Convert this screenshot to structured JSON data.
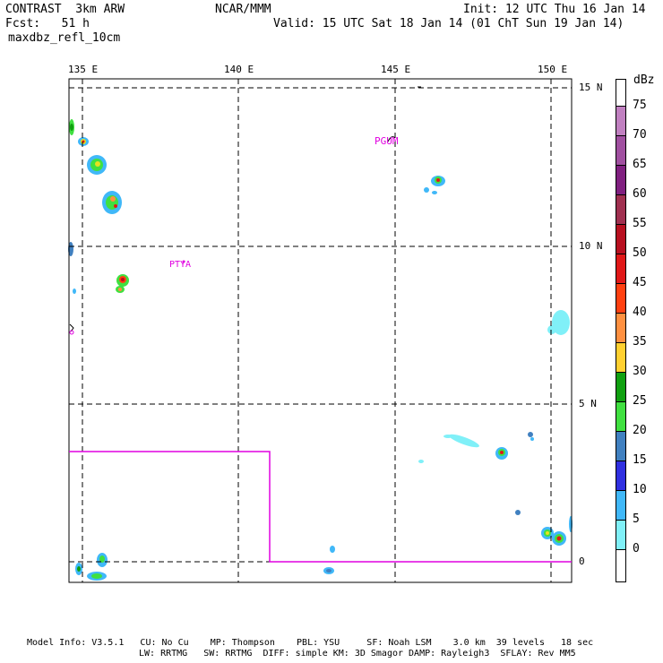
{
  "header": {
    "model": "CONTRAST  3km ARW",
    "org": "NCAR/MMM",
    "init": "Init: 12 UTC Thu 16 Jan 14",
    "fcst": "Fcst:   51 h",
    "valid": "Valid: 15 UTC Sat 18 Jan 14 (01 ChT Sun 19 Jan 14)",
    "field": "maxdbz_refl_10cm"
  },
  "map": {
    "lon_labels": [
      "135 E",
      "140 E",
      "145 E",
      "150 E"
    ],
    "lat_labels": [
      "15 N",
      "10 N",
      "5 N",
      "0"
    ],
    "stations": [
      "PGUM",
      "PTYA"
    ]
  },
  "colorbar": {
    "units": "dBz",
    "levels": [
      {
        "value": "75",
        "color": "#c080c0"
      },
      {
        "value": "70",
        "color": "#a050a0"
      },
      {
        "value": "65",
        "color": "#802080"
      },
      {
        "value": "60",
        "color": "#a03050"
      },
      {
        "value": "55",
        "color": "#b81020"
      },
      {
        "value": "50",
        "color": "#e01818"
      },
      {
        "value": "45",
        "color": "#ff4010"
      },
      {
        "value": "40",
        "color": "#ff9040"
      },
      {
        "value": "35",
        "color": "#ffd030"
      },
      {
        "value": "30",
        "color": "#e8e020"
      },
      {
        "value": "25",
        "color": "#10a010"
      },
      {
        "value": "20",
        "color": "#40e040"
      },
      {
        "value": "15",
        "color": "#4080c0"
      },
      {
        "value": "10",
        "color": "#3030e0"
      },
      {
        "value": "5",
        "color": "#40b8f8"
      },
      {
        "value": "0",
        "color": "#80f0f8"
      }
    ]
  },
  "footer": {
    "line1": "Model Info: V3.5.1   CU: No Cu    MP: Thompson    PBL: YSU     SF: Noah LSM    3.0 km  39 levels   18 sec",
    "line2": "LW: RRTMG   SW: RRTMG  DIFF: simple KM: 3D Smagor DAMP: Rayleigh3  SFLAY: Rev MM5"
  }
}
